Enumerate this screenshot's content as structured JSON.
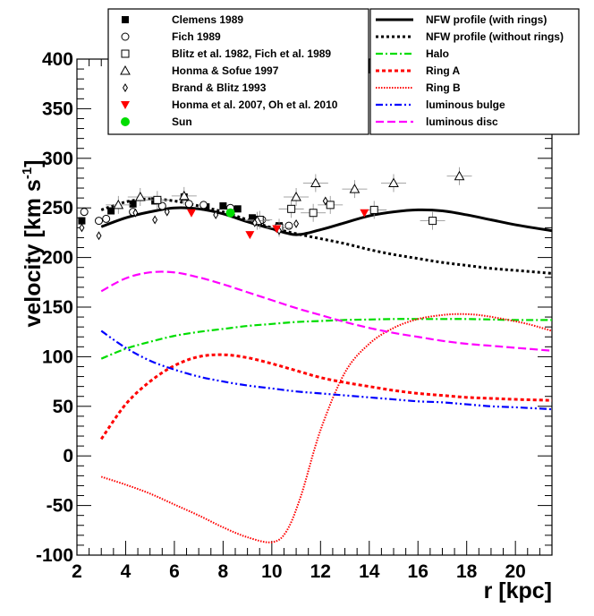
{
  "chart_data": {
    "type": "line",
    "xlabel": "r [kpc]",
    "ylabel": "velocity [km s",
    "ylabel_sup": "-1",
    "ylabel_close": "]",
    "xlim": [
      2,
      21.5
    ],
    "ylim": [
      -100,
      400
    ],
    "xticks": [
      2,
      4,
      6,
      8,
      10,
      12,
      14,
      16,
      18,
      20
    ],
    "yticks": [
      -100,
      -50,
      0,
      50,
      100,
      150,
      200,
      250,
      300,
      350,
      400
    ],
    "series": [
      {
        "name": "NFW profile (with rings)",
        "color": "#000000",
        "dash": "solid",
        "width": 3,
        "x": [
          3,
          4,
          5,
          6,
          7,
          8,
          9,
          10,
          11,
          12,
          13,
          14,
          15,
          16,
          17,
          18,
          19,
          20,
          21.5
        ],
        "y": [
          231,
          240,
          246,
          250,
          249,
          244,
          236,
          229,
          223,
          228,
          235,
          242,
          246,
          248,
          247,
          243,
          238,
          233,
          227
        ]
      },
      {
        "name": "NFW profile (without rings)",
        "color": "#000000",
        "dash": "3,3",
        "width": 3,
        "x": [
          3,
          4,
          5,
          6,
          7,
          8,
          9,
          10,
          11,
          12,
          13,
          14,
          15,
          16,
          17,
          18,
          19,
          20,
          21.5
        ],
        "y": [
          248,
          256,
          259,
          257,
          252,
          246,
          238,
          230,
          224,
          219,
          214,
          208,
          203,
          199,
          195,
          192,
          189,
          187,
          184
        ]
      },
      {
        "name": "Halo",
        "color": "#00dd00",
        "dash": "8,3,2,3",
        "width": 2.2,
        "x": [
          3,
          4,
          5,
          6,
          7,
          8,
          9,
          10,
          11,
          12,
          13,
          14,
          15,
          16,
          17,
          18,
          19,
          20,
          21.5
        ],
        "y": [
          98,
          108,
          115,
          121,
          125,
          128,
          131,
          133,
          135,
          136,
          137,
          137.5,
          138,
          138,
          138,
          138,
          137.5,
          137,
          137
        ]
      },
      {
        "name": "Ring A",
        "color": "#ff0000",
        "dash": "4,3",
        "width": 3,
        "x": [
          3,
          4,
          5,
          6,
          7,
          8,
          9,
          10,
          11,
          12,
          13,
          14,
          15,
          16,
          17,
          18,
          19,
          20,
          21.5
        ],
        "y": [
          17,
          52,
          75,
          91,
          100,
          102,
          99,
          93,
          86,
          79,
          74,
          70,
          66,
          63,
          61,
          59,
          58,
          57,
          56
        ]
      },
      {
        "name": "Ring B",
        "color": "#ff0000",
        "dash": "1.5,1.5",
        "width": 2,
        "x": [
          3,
          4,
          5,
          6,
          7,
          8,
          9,
          10,
          10.6,
          11.2,
          12,
          13,
          14,
          15,
          16,
          17,
          17.7,
          18.5,
          19.5,
          20.5,
          21.5
        ],
        "y": [
          -21,
          -29,
          -38,
          -49,
          -60,
          -72,
          -82,
          -87,
          -76,
          -40,
          26,
          84,
          113,
          129,
          138,
          142,
          143,
          142,
          138,
          133,
          126
        ]
      },
      {
        "name": "luminous bulge",
        "color": "#0000ff",
        "dash": "8,3,2,3,2,3",
        "width": 2.2,
        "x": [
          3,
          4,
          5,
          6,
          7,
          8,
          9,
          10,
          11,
          12,
          13,
          14,
          15,
          16,
          17,
          18,
          19,
          20,
          21.5
        ],
        "y": [
          126,
          109,
          96,
          87,
          80,
          75,
          71,
          68,
          65,
          63,
          61,
          59,
          57,
          55,
          54,
          52,
          50,
          49,
          47
        ]
      },
      {
        "name": "luminous disc",
        "color": "#ff00ff",
        "dash": "9,4",
        "width": 2.2,
        "x": [
          3,
          4,
          5,
          6,
          7,
          8,
          9,
          10,
          11,
          12,
          13,
          14,
          15,
          16,
          17,
          18,
          19,
          20,
          21.5
        ],
        "y": [
          166,
          179,
          185,
          185,
          180,
          173,
          165,
          157,
          149,
          142,
          135,
          129,
          124,
          120,
          116,
          113,
          111,
          109,
          106
        ]
      }
    ],
    "observations": [
      {
        "name": "Clemens 1989",
        "marker": "filled-square",
        "color": "#000000",
        "points": [
          [
            2.2,
            237
          ],
          [
            3.4,
            247
          ],
          [
            4.3,
            254
          ],
          [
            5.2,
            257
          ],
          [
            6.4,
            261
          ],
          [
            7.3,
            251
          ],
          [
            8.0,
            252
          ],
          [
            8.6,
            249
          ],
          [
            9.2,
            240
          ],
          [
            10.3,
            232
          ]
        ]
      },
      {
        "name": "Fich 1989",
        "marker": "open-circle",
        "color": "#000000",
        "points": [
          [
            2.3,
            246
          ],
          [
            2.9,
            237
          ],
          [
            3.2,
            239
          ],
          [
            4.3,
            246
          ],
          [
            5.5,
            252
          ],
          [
            6.6,
            254
          ],
          [
            7.2,
            253
          ],
          [
            8.3,
            250
          ],
          [
            9.6,
            238
          ],
          [
            10.7,
            232
          ]
        ]
      },
      {
        "name": "Blitz et al. 1982, Fich et al. 1989",
        "marker": "open-square",
        "color": "#000000",
        "points": [
          [
            5.3,
            258
          ],
          [
            9.5,
            238
          ],
          [
            10.3,
            230
          ],
          [
            10.8,
            249
          ],
          [
            11.7,
            245
          ],
          [
            12.4,
            253
          ],
          [
            14.2,
            248
          ],
          [
            16.6,
            237
          ]
        ]
      },
      {
        "name": "Honma & Sofue 1997",
        "marker": "open-triangle",
        "color": "#000000",
        "points": [
          [
            3.7,
            253
          ],
          [
            4.6,
            261
          ],
          [
            6.4,
            262
          ],
          [
            9.4,
            237
          ],
          [
            11.0,
            261
          ],
          [
            11.8,
            275
          ],
          [
            13.4,
            269
          ],
          [
            15.0,
            275
          ],
          [
            17.7,
            282
          ]
        ]
      },
      {
        "name": "Brand & Blitz 1993",
        "marker": "open-diamond",
        "color": "#000000",
        "points": [
          [
            2.2,
            230
          ],
          [
            2.9,
            222
          ],
          [
            4.4,
            245
          ],
          [
            5.2,
            238
          ],
          [
            5.7,
            246
          ],
          [
            7.7,
            243
          ],
          [
            9.3,
            235
          ],
          [
            10.3,
            227
          ],
          [
            11.0,
            234
          ],
          [
            12.2,
            257
          ]
        ]
      },
      {
        "name": "Honma et al. 2007, Oh et al. 2010",
        "marker": "red-triangle-down",
        "color": "#ff0000",
        "points": [
          [
            6.7,
            245
          ],
          [
            9.1,
            223
          ],
          [
            10.2,
            229
          ],
          [
            13.8,
            245
          ]
        ]
      },
      {
        "name": "Sun",
        "marker": "green-circle",
        "color": "#00dd00",
        "points": [
          [
            8.3,
            245
          ]
        ]
      }
    ]
  }
}
